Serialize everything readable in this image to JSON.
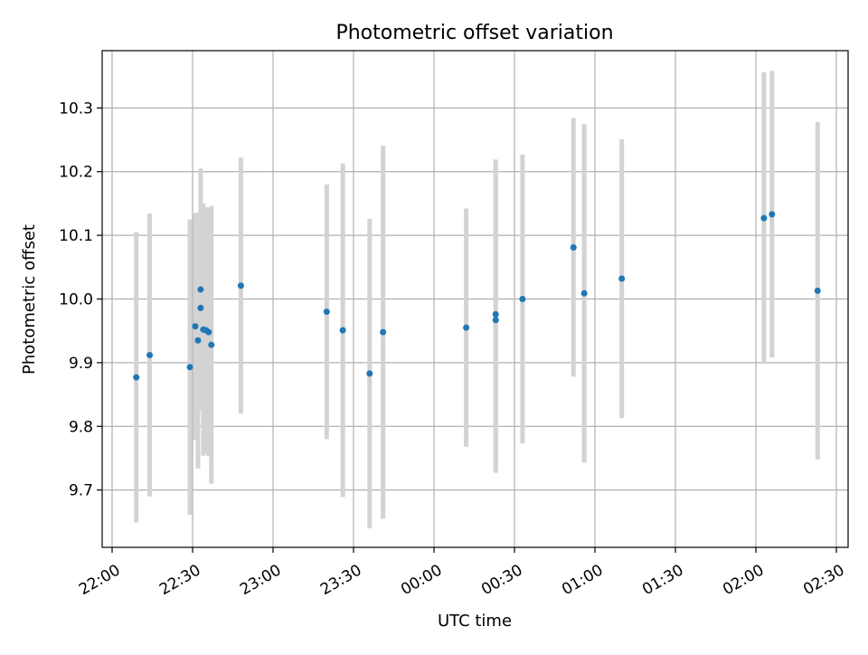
{
  "chart_data": {
    "type": "scatter",
    "title": "Photometric offset variation",
    "xlabel": "UTC time",
    "ylabel": "Photometric offset",
    "x_axis": {
      "scale": "time",
      "range": [
        "22:00",
        "02:30"
      ],
      "tick_labels": [
        "22:00",
        "22:30",
        "23:00",
        "23:30",
        "00:00",
        "00:30",
        "01:00",
        "01:30",
        "02:00",
        "02:30"
      ]
    },
    "y_axis": {
      "range": [
        9.61,
        10.39
      ],
      "ticks": [
        9.7,
        9.8,
        9.9,
        10.0,
        10.1,
        10.2,
        10.3
      ],
      "tick_labels": [
        "9.7",
        "9.8",
        "9.9",
        "10.0",
        "10.1",
        "10.2",
        "10.3"
      ]
    },
    "grid": true,
    "series": [
      {
        "points": [
          {
            "x": "22:09",
            "y": 9.877,
            "err": 0.228
          },
          {
            "x": "22:14",
            "y": 9.912,
            "err": 0.222
          },
          {
            "x": "22:29",
            "y": 9.893,
            "err": 0.232
          },
          {
            "x": "22:31",
            "y": 9.957,
            "err": 0.178
          },
          {
            "x": "22:32",
            "y": 9.935,
            "err": 0.201
          },
          {
            "x": "22:33",
            "y": 10.015,
            "err": 0.19
          },
          {
            "x": "22:33",
            "y": 9.986,
            "err": 0.152
          },
          {
            "x": "22:34",
            "y": 9.952,
            "err": 0.198
          },
          {
            "x": "22:35",
            "y": 9.951,
            "err": 0.193
          },
          {
            "x": "22:36",
            "y": 9.948,
            "err": 0.195
          },
          {
            "x": "22:37",
            "y": 9.928,
            "err": 0.218
          },
          {
            "x": "22:48",
            "y": 10.021,
            "err": 0.201
          },
          {
            "x": "23:20",
            "y": 9.98,
            "err": 0.2
          },
          {
            "x": "23:26",
            "y": 9.951,
            "err": 0.262
          },
          {
            "x": "23:36",
            "y": 9.883,
            "err": 0.243
          },
          {
            "x": "23:41",
            "y": 9.948,
            "err": 0.293
          },
          {
            "x": "00:12",
            "y": 9.955,
            "err": 0.187
          },
          {
            "x": "00:23",
            "y": 9.967,
            "err": 0.24
          },
          {
            "x": "00:23",
            "y": 9.976,
            "err": 0.243
          },
          {
            "x": "00:33",
            "y": 10.0,
            "err": 0.227
          },
          {
            "x": "00:52",
            "y": 10.081,
            "err": 0.203
          },
          {
            "x": "00:56",
            "y": 10.009,
            "err": 0.266
          },
          {
            "x": "01:10",
            "y": 10.032,
            "err": 0.219
          },
          {
            "x": "02:03",
            "y": 10.127,
            "err": 0.229
          },
          {
            "x": "02:06",
            "y": 10.133,
            "err": 0.225
          },
          {
            "x": "02:23",
            "y": 10.013,
            "err": 0.265
          }
        ]
      }
    ],
    "colors": {
      "marker": "#1f77b4",
      "errorbar": "#d3d3d3",
      "grid": "#b0b0b0",
      "axes": "#000000"
    }
  }
}
